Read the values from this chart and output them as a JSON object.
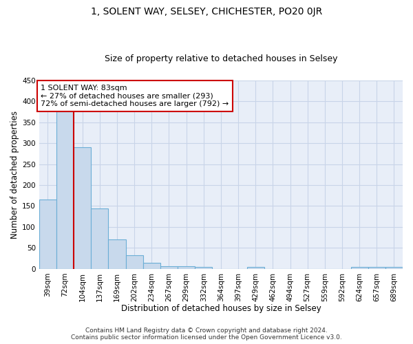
{
  "title": "1, SOLENT WAY, SELSEY, CHICHESTER, PO20 0JR",
  "subtitle": "Size of property relative to detached houses in Selsey",
  "xlabel": "Distribution of detached houses by size in Selsey",
  "ylabel": "Number of detached properties",
  "categories": [
    "39sqm",
    "72sqm",
    "104sqm",
    "137sqm",
    "169sqm",
    "202sqm",
    "234sqm",
    "267sqm",
    "299sqm",
    "332sqm",
    "364sqm",
    "397sqm",
    "429sqm",
    "462sqm",
    "494sqm",
    "527sqm",
    "559sqm",
    "592sqm",
    "624sqm",
    "657sqm",
    "689sqm"
  ],
  "values": [
    165,
    375,
    290,
    145,
    70,
    33,
    15,
    7,
    6,
    4,
    0,
    0,
    5,
    0,
    0,
    0,
    0,
    0,
    5,
    5,
    5
  ],
  "bar_color": "#c8d9ec",
  "bar_edge_color": "#6baed6",
  "annotation_text": "1 SOLENT WAY: 83sqm\n← 27% of detached houses are smaller (293)\n72% of semi-detached houses are larger (792) →",
  "annotation_box_color": "#ffffff",
  "annotation_box_edge_color": "#cc0000",
  "marker_line_color": "#cc0000",
  "ylim": [
    0,
    450
  ],
  "yticks": [
    0,
    50,
    100,
    150,
    200,
    250,
    300,
    350,
    400,
    450
  ],
  "grid_color": "#c8d4e8",
  "background_color": "#e8eef8",
  "footer_line1": "Contains HM Land Registry data © Crown copyright and database right 2024.",
  "footer_line2": "Contains public sector information licensed under the Open Government Licence v3.0.",
  "title_fontsize": 10,
  "subtitle_fontsize": 9,
  "xlabel_fontsize": 8.5,
  "ylabel_fontsize": 8.5,
  "tick_fontsize": 7.5,
  "annotation_fontsize": 8,
  "footer_fontsize": 6.5,
  "red_line_bar_index": 1
}
